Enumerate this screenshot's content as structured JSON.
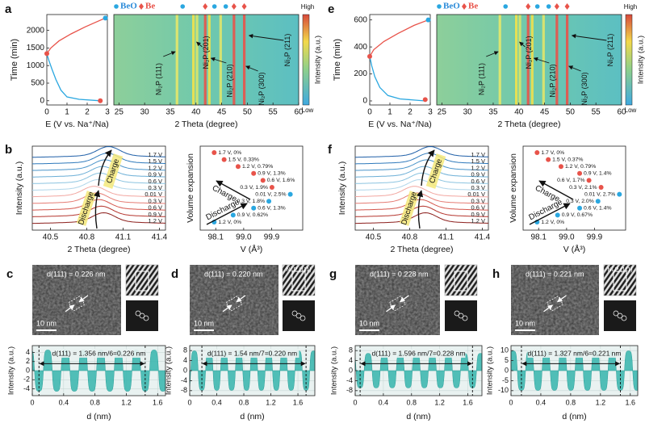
{
  "top": [
    {
      "letter": "a",
      "ylabel": "Time (min)",
      "xlabel": "E (V vs. Na⁺/Na)",
      "xlim": [
        0,
        3
      ],
      "xticks": [
        0,
        1,
        2,
        3
      ],
      "ylim": [
        -120,
        2450
      ],
      "yticks": [
        0,
        500,
        1000,
        1500,
        2000
      ],
      "discharge": {
        "color": "#2aa7e0",
        "E": [
          2.65,
          1.6,
          1.0,
          0.7,
          0.45,
          0.25,
          0.1,
          0
        ],
        "t": [
          0,
          40,
          110,
          300,
          600,
          900,
          1150,
          1340
        ]
      },
      "charge": {
        "color": "#e8534a",
        "E": [
          0,
          0.2,
          0.6,
          1.2,
          1.9,
          2.5,
          2.9
        ],
        "t": [
          1340,
          1500,
          1700,
          1900,
          2100,
          2250,
          2350
        ]
      },
      "points": [
        {
          "E": 2.65,
          "t": 0,
          "color": "#e8534a"
        },
        {
          "E": 0,
          "t": 1340,
          "color": "#e8534a"
        },
        {
          "E": 2.9,
          "t": 2350,
          "color": "#2aa7e0"
        }
      ],
      "heatmap": {
        "xlim": [
          24,
          60
        ],
        "xticks": [
          25,
          30,
          35,
          40,
          45,
          50,
          55,
          60
        ],
        "xlabel": "2 Theta (degree)",
        "colorbar_label": "Intensity (a.u.)",
        "high": "High",
        "low": "Low",
        "beo": "BeO",
        "be": "Be",
        "beo_peaks": [
          37.4,
          43.6,
          45.8
        ],
        "be_peaks": [
          41.8,
          47.4,
          49.4
        ],
        "stripes": [
          36.3,
          39.5,
          40.2,
          41.8,
          42.6,
          44.8,
          47.4,
          49.4
        ],
        "stripe_colors": [
          "#e6e86a",
          "#f2e24a",
          "#d9e56a",
          "#e8534a",
          "#f0e04c",
          "#e2e46a",
          "#e8534a",
          "#e8534a"
        ],
        "peaks": [
          {
            "label": "Ni₂P (111)",
            "pos": 36.3
          },
          {
            "label": "Ni₂P (201)",
            "pos": 39.8
          },
          {
            "label": "Ni₂P (210)",
            "pos": 42.6
          },
          {
            "label": "Ni₂P (300)",
            "pos": 49.4
          },
          {
            "label": "Ni₂P (211)",
            "pos": 50.0
          }
        ]
      }
    },
    {
      "letter": "e",
      "ylabel": "Time (min)",
      "xlabel": "E (V vs. Na⁺/Na)",
      "xlim": [
        0,
        3
      ],
      "xticks": [
        0,
        1,
        2,
        3
      ],
      "ylim": [
        -30,
        640
      ],
      "yticks": [
        0,
        200,
        400,
        600
      ],
      "discharge": {
        "color": "#2aa7e0",
        "E": [
          2.75,
          1.5,
          0.9,
          0.5,
          0.25,
          0.1,
          0
        ],
        "t": [
          0,
          15,
          40,
          100,
          180,
          260,
          330
        ]
      },
      "charge": {
        "color": "#e8534a",
        "E": [
          0,
          0.2,
          0.7,
          1.4,
          2.2,
          2.9
        ],
        "t": [
          330,
          380,
          440,
          500,
          560,
          600
        ]
      },
      "points": [
        {
          "E": 2.75,
          "t": 10,
          "color": "#e8534a"
        },
        {
          "E": 0,
          "t": 330,
          "color": "#e8534a"
        },
        {
          "E": 2.9,
          "t": 600,
          "color": "#2aa7e0"
        }
      ],
      "heatmap": {
        "xlim": [
          24,
          60
        ],
        "xticks": [
          25,
          30,
          35,
          40,
          45,
          50,
          55,
          60
        ],
        "xlabel": "2 Theta (degree)",
        "colorbar_label": "Intensity (a.u.)",
        "high": "High",
        "low": "Low",
        "beo": "BeO",
        "be": "Be",
        "beo_peaks": [
          37.4,
          43.6,
          45.8
        ],
        "be_peaks": [
          41.8,
          47.4,
          49.4
        ],
        "stripes": [
          36.3,
          39.5,
          40.2,
          41.8,
          42.6,
          44.8,
          47.4,
          49.4
        ],
        "stripe_colors": [
          "#e6e86a",
          "#f2e24a",
          "#d9e56a",
          "#e8534a",
          "#f0e04c",
          "#e2e46a",
          "#e8534a",
          "#e8534a"
        ],
        "peaks": [
          {
            "label": "Ni₂P (111)",
            "pos": 36.3
          },
          {
            "label": "Ni₂P (201)",
            "pos": 39.8
          },
          {
            "label": "Ni₂P (210)",
            "pos": 42.6
          },
          {
            "label": "Ni₂P (300)",
            "pos": 49.4
          },
          {
            "label": "Ni₂P (211)",
            "pos": 50.0
          }
        ]
      }
    }
  ],
  "mid": [
    {
      "letter": "b",
      "spectra": {
        "xlim": [
          40.35,
          41.45
        ],
        "xticks": [
          40.5,
          40.8,
          41.1,
          41.4
        ],
        "xlabel": "2 Theta (degree)",
        "ylabel": "Intensity (a.u.)",
        "labels": [
          "1.7 V",
          "1.5 V",
          "1.2 V",
          "0.9 V",
          "0.6 V",
          "0.3 V",
          "0.01 V",
          "0.3 V",
          "0.6 V",
          "0.9 V",
          "1.2 V"
        ],
        "peak_centers": [
          40.98,
          40.97,
          40.95,
          40.93,
          40.91,
          40.89,
          40.86,
          40.88,
          40.9,
          40.92,
          40.94
        ],
        "colors": [
          "#1f5fa8",
          "#2e79bb",
          "#4a94c9",
          "#6aaed6",
          "#8cc4e0",
          "#b0d6ea",
          "#f2a6a0",
          "#e57c74",
          "#d4554c",
          "#b5362f",
          "#8c1f1c"
        ],
        "charge": "Charge",
        "discharge": "Discharge"
      },
      "scatter": {
        "xlim": [
          97.6,
          100.9
        ],
        "xticks": [
          98.1,
          {
            "value": 99,
            "label": "99.0"
          },
          99.9
        ],
        "xlabel": "V (Å³)",
        "ylabel": "Volume expansion",
        "volumes": [
          98.05,
          98.37,
          98.82,
          99.32,
          99.62,
          99.91,
          100.5,
          99.81,
          99.32,
          98.66,
          98.05
        ],
        "labels": [
          "1.7 V, 0%",
          "1.5 V, 0.33%",
          "1.2 V, 0.79%",
          "0.9 V, 1.3%",
          "0.6 V, 1.6%",
          "0.3 V, 1.9%",
          "0.01 V, 2.5%",
          "0.3 V, 1.8%",
          "0.6 V, 1.3%",
          "0.9 V, 0.62%",
          "1.2 V, 0%"
        ],
        "colors": [
          "#e8534a",
          "#e8534a",
          "#e8534a",
          "#e8534a",
          "#e8534a",
          "#e8534a",
          "#2aa7e0",
          "#2aa7e0",
          "#2aa7e0",
          "#2aa7e0",
          "#2aa7e0"
        ],
        "charge": "Charge",
        "discharge": "Discharge"
      }
    },
    {
      "letter": "f",
      "spectra": {
        "xlim": [
          40.35,
          41.45
        ],
        "xticks": [
          40.5,
          40.8,
          41.1,
          41.4
        ],
        "xlabel": "2 Theta (degree)",
        "ylabel": "Intensity (a.u.)",
        "labels": [
          "1.7 V",
          "1.5 V",
          "1.2 V",
          "0.9 V",
          "0.6 V",
          "0.3 V",
          "0.01 V",
          "0.3 V",
          "0.6 V",
          "0.9 V",
          "1.2 V"
        ],
        "peak_centers": [
          40.97,
          40.96,
          40.94,
          40.92,
          40.9,
          40.88,
          40.84,
          40.86,
          40.89,
          40.91,
          40.93
        ],
        "colors": [
          "#1f5fa8",
          "#2e79bb",
          "#4a94c9",
          "#6aaed6",
          "#8cc4e0",
          "#b0d6ea",
          "#f2a6a0",
          "#e57c74",
          "#d4554c",
          "#b5362f",
          "#8c1f1c"
        ],
        "charge": "Charge",
        "discharge": "Discharge"
      },
      "scatter": {
        "xlim": [
          97.6,
          100.9
        ],
        "xticks": [
          98.1,
          {
            "value": 99,
            "label": "99.0"
          },
          99.9
        ],
        "xlabel": "V (Å³)",
        "ylabel": "Volume expansion",
        "volumes": [
          98.05,
          98.41,
          98.82,
          99.42,
          99.72,
          100.11,
          100.7,
          100.01,
          99.42,
          98.71,
          98.05
        ],
        "labels": [
          "1.7 V, 0%",
          "1.5 V, 0.37%",
          "1.2 V, 0.79%",
          "0.9 V, 1.4%",
          "0.6 V, 1.7%",
          "0.3 V, 2.1%",
          "0.01 V, 2.7%",
          "0.3 V, 2.0%",
          "0.6 V, 1.4%",
          "0.9 V, 0.67%",
          "1.2 V, 0%"
        ],
        "colors": [
          "#e8534a",
          "#e8534a",
          "#e8534a",
          "#e8534a",
          "#e8534a",
          "#e8534a",
          "#2aa7e0",
          "#2aa7e0",
          "#2aa7e0",
          "#2aa7e0",
          "#2aa7e0"
        ],
        "charge": "Charge",
        "discharge": "Discharge"
      }
    }
  ],
  "bottom": [
    {
      "letter": "c",
      "image_label": "d(111) = 0.226 nm",
      "scale_bar": "10 nm",
      "ylabel": "Intensity (a.u.)",
      "xlabel": "d (nm)",
      "xlim": [
        0,
        1.7
      ],
      "xticks": [
        0,
        0.4,
        0.8,
        1.2,
        1.6
      ],
      "ylim": [
        -5.5,
        5.5
      ],
      "yticks": [
        -4,
        -2,
        0,
        2,
        4
      ],
      "amplitude": 4.6,
      "fringe_start": 0.085,
      "fringe_end": 1.441,
      "fringes": 6,
      "annotation": "d(111) = 1.356 nm/6=0.226 nm"
    },
    {
      "letter": "d",
      "image_label": "d(111) = 0.220 nm",
      "scale_bar": "10 nm",
      "inset_label": "Ni₂P (111)",
      "ylabel": "Intensity (a.u.)",
      "xlabel": "d (nm)",
      "xlim": [
        0,
        1.85
      ],
      "xticks": [
        0,
        0.4,
        0.8,
        1.2,
        1.6
      ],
      "ylim": [
        -10,
        10
      ],
      "yticks": [
        -8,
        -4,
        0,
        4,
        8
      ],
      "amplitude": 8,
      "fringe_start": 0.18,
      "fringe_end": 1.72,
      "fringes": 7,
      "annotation": "d(111) = 1.54 nm/7=0.220 nm"
    },
    {
      "letter": "g",
      "image_label": "d(111) = 0.228 nm",
      "scale_bar": "10 nm",
      "ylabel": "Intensity (a.u.)",
      "xlabel": "d (nm)",
      "xlim": [
        0,
        1.8
      ],
      "xticks": [
        0,
        0.4,
        0.8,
        1.2,
        1.6
      ],
      "ylim": [
        -10,
        10
      ],
      "yticks": [
        -8,
        -4,
        0,
        4,
        8
      ],
      "amplitude": 7,
      "fringe_start": 0.07,
      "fringe_end": 1.666,
      "fringes": 7,
      "annotation": "d(111) = 1.596 nm/7=0.228 nm"
    },
    {
      "letter": "h",
      "image_label": "d(111) = 0.221 nm",
      "scale_bar": "10 nm",
      "inset_label": "Ni₂P (111)",
      "ylabel": "Intensity (a.u.)",
      "xlabel": "d (nm)",
      "xlim": [
        0,
        1.7
      ],
      "xticks": [
        0,
        0.4,
        0.8,
        1.2,
        1.6
      ],
      "ylim": [
        -12.5,
        12.5
      ],
      "yticks": [
        -10,
        -5,
        0,
        5,
        10
      ],
      "amplitude": 10,
      "fringe_start": 0.14,
      "fringe_end": 1.467,
      "fringes": 6,
      "annotation": "d(111) = 1.327 nm/6=0.221 nm"
    }
  ]
}
